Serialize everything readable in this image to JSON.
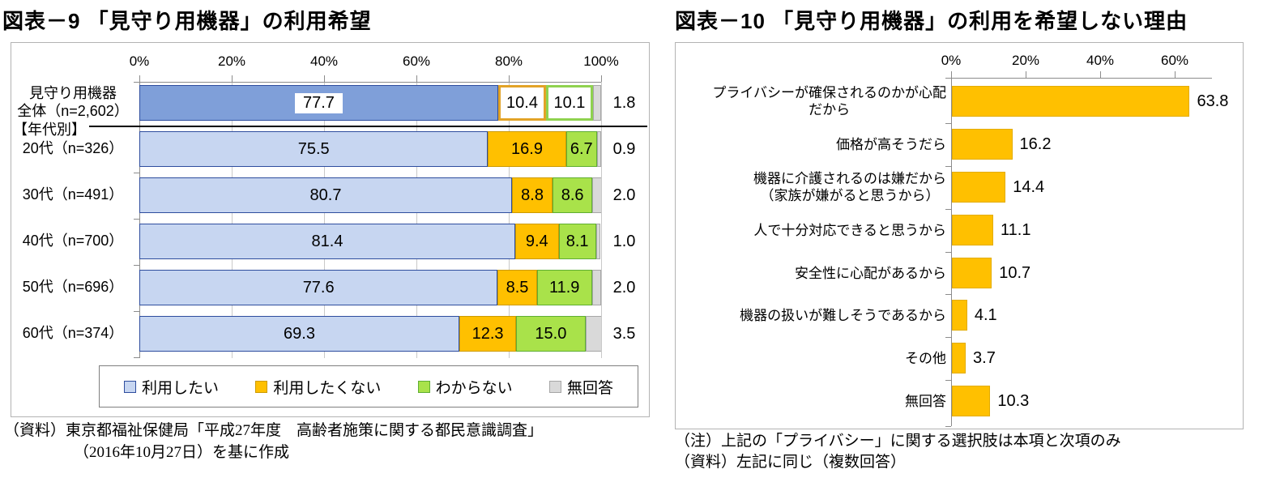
{
  "fig9": {
    "source_lines": [
      "（資料）東京都福祉保健局「平成27年度　高齢者施策に関する都民意識調査」",
      "（2016年10月27日）を基に作成"
    ]
  },
  "fig10": {
    "note_lines": [
      "（注）上記の「プライバシー」に関する選択肢は本項と次項のみ",
      "（資料）左記に同じ（複数回答）"
    ]
  },
  "chart_data": [
    {
      "id": "fig9",
      "title": "図表－9 「見守り用機器」の利用希望",
      "type": "bar",
      "subtype": "horizontal-stacked",
      "axis_tick_labels": [
        "0%",
        "20%",
        "40%",
        "60%",
        "80%",
        "100%"
      ],
      "xlim": [
        0,
        100
      ],
      "grid": true,
      "legend_position": "bottom",
      "series_names": [
        "利用したい",
        "利用したくない",
        "わからない",
        "無回答"
      ],
      "group_label": "【年代別】",
      "rows": [
        {
          "label_lines": [
            "見守り用機器",
            "全体（n=2,602）"
          ],
          "values": [
            77.7,
            10.4,
            10.1,
            1.8
          ],
          "emphasis": true
        },
        {
          "label_lines": [
            "20代（n=326）"
          ],
          "values": [
            75.5,
            16.9,
            6.7,
            0.9
          ]
        },
        {
          "label_lines": [
            "30代（n=491）"
          ],
          "values": [
            80.7,
            8.8,
            8.6,
            2.0
          ]
        },
        {
          "label_lines": [
            "40代（n=700）"
          ],
          "values": [
            81.4,
            9.4,
            8.1,
            1.0
          ]
        },
        {
          "label_lines": [
            "50代（n=696）"
          ],
          "values": [
            77.6,
            8.5,
            11.9,
            2.0
          ]
        },
        {
          "label_lines": [
            "60代（n=374）"
          ],
          "values": [
            69.3,
            12.3,
            15.0,
            3.5
          ]
        }
      ],
      "legend": [
        {
          "label": "利用したい",
          "fill": "#c7d6f1",
          "border": "#2e4d9e"
        },
        {
          "label": "利用したくない",
          "fill": "#ffc000",
          "border": "#cc9a00"
        },
        {
          "label": "わからない",
          "fill": "#a9e24a",
          "border": "#5fae32"
        },
        {
          "label": "無回答",
          "fill": "#d9d9d9",
          "border": "#a6a6a6"
        }
      ],
      "colors": {
        "bar_total_fill": "#7f9fd9",
        "bar_age_fill": "#c7d6f1",
        "bar_blue_border": "#2e4d9e",
        "orange_fill": "#ffc000",
        "orange_border": "#cc9a00",
        "orange_hollow_border": "#e2a327",
        "green_fill": "#a9e24a",
        "green_border": "#5fae32",
        "green_hollow_border": "#8fd24f",
        "gray_fill": "#d9d9d9",
        "gray_border": "#a6a6a6"
      }
    },
    {
      "id": "fig10",
      "title": "図表－10 「見守り用機器」の利用を希望しない理由",
      "type": "bar",
      "subtype": "horizontal",
      "axis_tick_labels": [
        "0%",
        "20%",
        "40%",
        "60%"
      ],
      "xlim": [
        0,
        70
      ],
      "grid": false,
      "bar_color": "#ffc000",
      "bar_border": "#e3ac00",
      "rows": [
        {
          "label_lines": [
            "プライバシーが確保されるのかが心配",
            "だから"
          ],
          "value": 63.8
        },
        {
          "label_lines": [
            "価格が高そうだら"
          ],
          "value": 16.2
        },
        {
          "label_lines": [
            "機器に介護されるのは嫌だから",
            "（家族が嫌がると思うから）"
          ],
          "value": 14.4
        },
        {
          "label_lines": [
            "人で十分対応できると思うから"
          ],
          "value": 11.1
        },
        {
          "label_lines": [
            "安全性に心配があるから"
          ],
          "value": 10.7
        },
        {
          "label_lines": [
            "機器の扱いが難しそうであるから"
          ],
          "value": 4.1
        },
        {
          "label_lines": [
            "その他"
          ],
          "value": 3.7
        },
        {
          "label_lines": [
            "無回答"
          ],
          "value": 10.3
        }
      ]
    }
  ]
}
